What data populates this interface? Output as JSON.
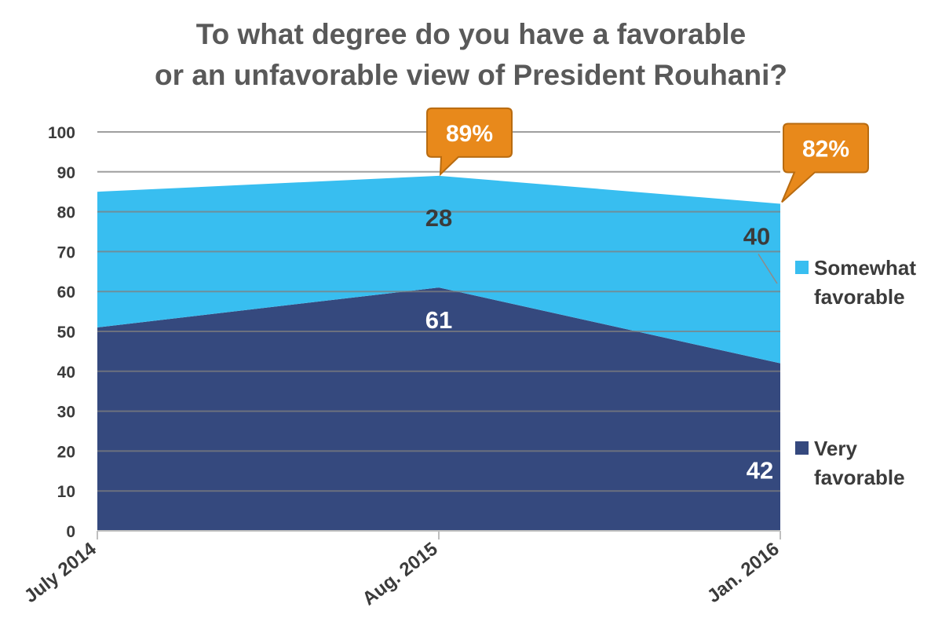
{
  "chart_data": {
    "type": "area",
    "stacked": true,
    "title_lines": [
      "To what degree do you have a favorable",
      "or an unfavorable view of President Rouhani?"
    ],
    "categories": [
      "July 2014",
      "Aug. 2015",
      "Jan. 2016"
    ],
    "series": [
      {
        "name": "Very favorable",
        "values": [
          51,
          61,
          42
        ],
        "color": "#35497e"
      },
      {
        "name": "Somewhat favorable",
        "values": [
          34,
          28,
          40
        ],
        "color": "#38bef0"
      }
    ],
    "data_labels": {
      "Very favorable": [
        null,
        "61",
        "42"
      ],
      "Somewhat favorable": [
        null,
        "28",
        "40"
      ]
    },
    "callouts": [
      {
        "category": "Aug. 2015",
        "total": 89,
        "text": "89%"
      },
      {
        "category": "Jan. 2016",
        "total": 82,
        "text": "82%"
      }
    ],
    "ylim": [
      0,
      100
    ],
    "yticks": [
      "0",
      "10",
      "20",
      "30",
      "40",
      "50",
      "60",
      "70",
      "80",
      "90",
      "100"
    ],
    "grid": true,
    "legend_position": "right",
    "legend": [
      {
        "series": "Somewhat favorable",
        "lines": [
          "Somewhat",
          "favorable"
        ]
      },
      {
        "series": "Very favorable",
        "lines": [
          "Very",
          "favorable"
        ]
      }
    ],
    "callout_color": "#e8891b",
    "callout_border": "#b86b10"
  }
}
